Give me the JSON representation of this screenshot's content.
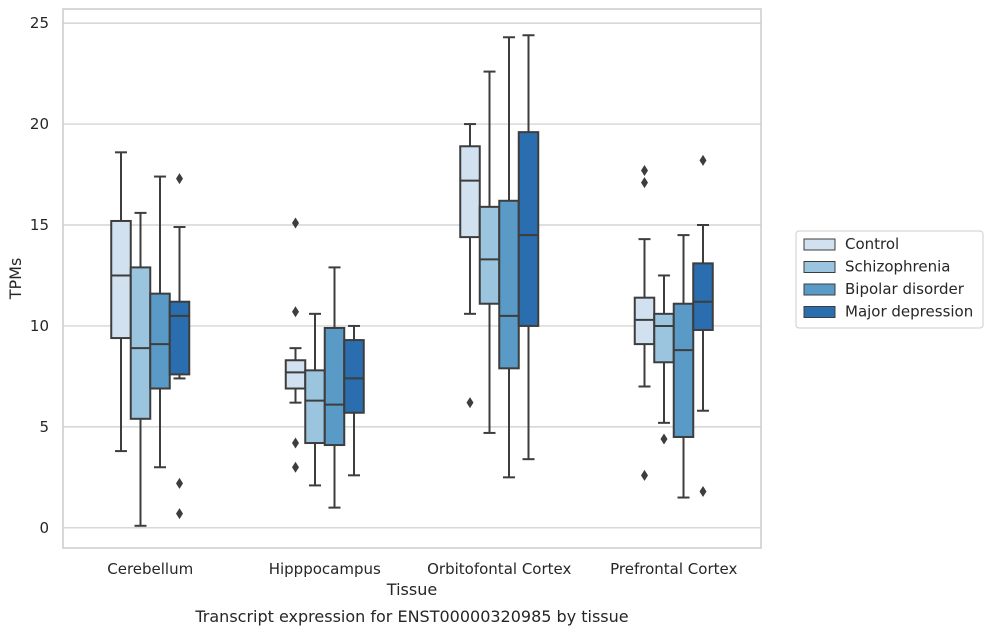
{
  "caption": "Transcript expression for ENST00000320985 by tissue",
  "chart_data": {
    "type": "box",
    "xlabel": "Tissue",
    "ylabel": "TPMs",
    "ylim": [
      -1,
      25.7
    ],
    "yticks": [
      0,
      5,
      10,
      15,
      20,
      25
    ],
    "grid": true,
    "legend_position": "right",
    "categories": [
      "Cerebellum",
      "Hipppocampus",
      "Orbitofontal Cortex",
      "Prefrontal Cortex"
    ],
    "series": [
      {
        "name": "Control",
        "color": "#d1e1ef",
        "boxes": [
          {
            "whislo": 3.8,
            "q1": 9.4,
            "med": 12.5,
            "q3": 15.2,
            "whishi": 18.6,
            "fliers": []
          },
          {
            "whislo": 6.2,
            "q1": 6.9,
            "med": 7.7,
            "q3": 8.3,
            "whishi": 8.9,
            "fliers": [
              15.1,
              10.7,
              4.2,
              3.0
            ]
          },
          {
            "whislo": 10.6,
            "q1": 14.4,
            "med": 17.2,
            "q3": 18.9,
            "whishi": 20.0,
            "fliers": [
              6.2
            ]
          },
          {
            "whislo": 7.0,
            "q1": 9.1,
            "med": 10.3,
            "q3": 11.4,
            "whishi": 14.3,
            "fliers": [
              17.7,
              17.1,
              2.6
            ]
          }
        ]
      },
      {
        "name": "Schizophrenia",
        "color": "#9bc5de",
        "boxes": [
          {
            "whislo": 0.1,
            "q1": 5.4,
            "med": 8.9,
            "q3": 12.9,
            "whishi": 15.6,
            "fliers": []
          },
          {
            "whislo": 2.1,
            "q1": 4.2,
            "med": 6.3,
            "q3": 7.8,
            "whishi": 10.6,
            "fliers": []
          },
          {
            "whislo": 4.7,
            "q1": 11.1,
            "med": 13.3,
            "q3": 15.9,
            "whishi": 22.6,
            "fliers": []
          },
          {
            "whislo": 5.2,
            "q1": 8.2,
            "med": 10.0,
            "q3": 10.6,
            "whishi": 12.5,
            "fliers": [
              4.4
            ]
          }
        ]
      },
      {
        "name": "Bipolar disorder",
        "color": "#5a9ac6",
        "boxes": [
          {
            "whislo": 3.0,
            "q1": 6.9,
            "med": 9.1,
            "q3": 11.6,
            "whishi": 17.4,
            "fliers": []
          },
          {
            "whislo": 1.0,
            "q1": 4.1,
            "med": 6.1,
            "q3": 9.9,
            "whishi": 12.9,
            "fliers": []
          },
          {
            "whislo": 2.5,
            "q1": 7.9,
            "med": 10.5,
            "q3": 16.2,
            "whishi": 24.3,
            "fliers": []
          },
          {
            "whislo": 1.5,
            "q1": 4.5,
            "med": 8.8,
            "q3": 11.1,
            "whishi": 14.5,
            "fliers": []
          }
        ]
      },
      {
        "name": "Major depression",
        "color": "#2a6eaf",
        "boxes": [
          {
            "whislo": 7.4,
            "q1": 7.6,
            "med": 10.5,
            "q3": 11.2,
            "whishi": 14.9,
            "fliers": [
              17.3,
              2.2,
              0.7
            ]
          },
          {
            "whislo": 2.6,
            "q1": 5.7,
            "med": 7.4,
            "q3": 9.3,
            "whishi": 10.0,
            "fliers": []
          },
          {
            "whislo": 3.4,
            "q1": 10.0,
            "med": 14.5,
            "q3": 19.6,
            "whishi": 24.4,
            "fliers": []
          },
          {
            "whislo": 5.8,
            "q1": 9.8,
            "med": 11.2,
            "q3": 13.1,
            "whishi": 15.0,
            "fliers": [
              18.2,
              1.8
            ]
          }
        ]
      }
    ]
  }
}
